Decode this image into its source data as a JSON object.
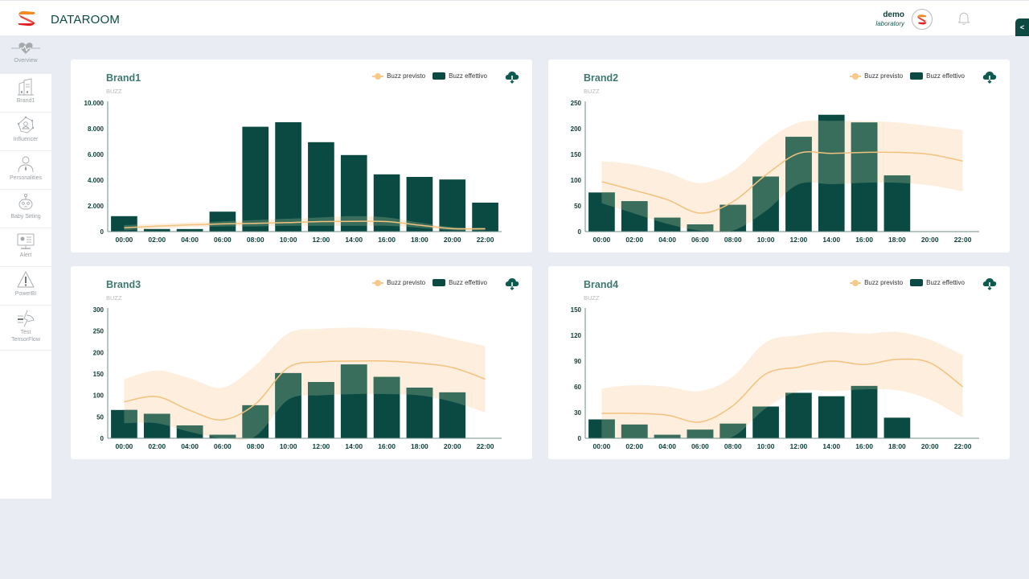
{
  "header": {
    "title": "DATAROOM",
    "user_name": "demo",
    "user_org": "laboratory",
    "collapse_label": "<"
  },
  "sidebar": {
    "items": [
      {
        "label": "Overview",
        "icon": "heart-pulse-icon",
        "active": true
      },
      {
        "label": "Brand1",
        "icon": "buildings-icon"
      },
      {
        "label": "Influencer",
        "icon": "network-user-icon"
      },
      {
        "label": "Personalities",
        "icon": "person-tie-icon"
      },
      {
        "label": "Baby Sitting",
        "icon": "robot-icon"
      },
      {
        "label": "Alert",
        "icon": "monitor-chart-icon"
      },
      {
        "label": "PowerBI",
        "icon": "warning-triangle-icon"
      },
      {
        "label": "Test TensorFlow",
        "icon": "tensorflow-icon"
      }
    ]
  },
  "legend": {
    "predicted": "Buzz previsto",
    "actual": "Buzz effettivo"
  },
  "colors": {
    "bar": "#0a4a42",
    "bar_overlap": "#3a6e5c",
    "line": "#f2c27e",
    "band": "#fdeedd",
    "accent": "#0c4a43"
  },
  "chart_data": [
    {
      "type": "bar",
      "title": "Brand1",
      "ylabel": "BUZZ",
      "categories": [
        "00:00",
        "02:00",
        "04:00",
        "06:00",
        "08:00",
        "10:00",
        "12:00",
        "14:00",
        "16:00",
        "18:00",
        "20:00",
        "22:00"
      ],
      "yticks": [
        "0",
        "2.000",
        "4.000",
        "6.000",
        "8.000",
        "10.000"
      ],
      "ylim": [
        0,
        10000
      ],
      "series": [
        {
          "name": "Buzz effettivo",
          "values": [
            1200,
            200,
            200,
            1550,
            8150,
            8500,
            6950,
            5950,
            4450,
            4250,
            4050,
            2250
          ]
        },
        {
          "name": "Buzz previsto",
          "values": [
            300,
            420,
            520,
            600,
            640,
            700,
            780,
            800,
            780,
            500,
            230,
            220
          ]
        },
        {
          "name": "Buzz previsto band upper",
          "values": [
            500,
            600,
            700,
            800,
            900,
            1000,
            1100,
            1200,
            1100,
            700,
            350,
            300
          ]
        },
        {
          "name": "Buzz previsto band lower",
          "values": [
            100,
            250,
            350,
            400,
            400,
            450,
            450,
            450,
            450,
            300,
            100,
            100
          ]
        }
      ]
    },
    {
      "type": "bar",
      "title": "Brand2",
      "ylabel": "BUZZ",
      "categories": [
        "00:00",
        "02:00",
        "04:00",
        "06:00",
        "08:00",
        "10:00",
        "12:00",
        "14:00",
        "16:00",
        "18:00",
        "20:00",
        "22:00"
      ],
      "yticks": [
        "0",
        "50",
        "100",
        "150",
        "200",
        "250"
      ],
      "ylim": [
        0,
        250
      ],
      "series": [
        {
          "name": "Buzz effettivo",
          "values": [
            76,
            59,
            27,
            14,
            52,
            107,
            184,
            227,
            212,
            109,
            null,
            null
          ]
        },
        {
          "name": "Buzz previsto",
          "values": [
            97,
            80,
            62,
            36,
            58,
            110,
            152,
            152,
            154,
            154,
            150,
            137
          ]
        },
        {
          "name": "Buzz previsto band upper",
          "values": [
            137,
            130,
            115,
            94,
            118,
            175,
            212,
            215,
            215,
            212,
            205,
            197
          ]
        },
        {
          "name": "Buzz previsto band lower",
          "values": [
            55,
            35,
            15,
            2,
            2,
            40,
            92,
            92,
            95,
            95,
            90,
            78
          ]
        }
      ]
    },
    {
      "type": "bar",
      "title": "Brand3",
      "ylabel": "BUZZ",
      "categories": [
        "00:00",
        "02:00",
        "04:00",
        "06:00",
        "08:00",
        "10:00",
        "12:00",
        "14:00",
        "16:00",
        "18:00",
        "20:00",
        "22:00"
      ],
      "yticks": [
        "0",
        "50",
        "100",
        "150",
        "200",
        "250",
        "300"
      ],
      "ylim": [
        0,
        300
      ],
      "series": [
        {
          "name": "Buzz effettivo",
          "values": [
            66,
            57,
            30,
            8,
            77,
            152,
            131,
            172,
            143,
            118,
            107,
            null
          ]
        },
        {
          "name": "Buzz previsto",
          "values": [
            85,
            97,
            65,
            43,
            80,
            165,
            178,
            180,
            180,
            175,
            165,
            138
          ]
        },
        {
          "name": "Buzz previsto band upper",
          "values": [
            138,
            158,
            140,
            118,
            170,
            245,
            255,
            258,
            255,
            248,
            232,
            215
          ]
        },
        {
          "name": "Buzz previsto band lower",
          "values": [
            35,
            35,
            15,
            0,
            5,
            90,
            100,
            103,
            103,
            100,
            85,
            60
          ]
        }
      ]
    },
    {
      "type": "bar",
      "title": "Brand4",
      "ylabel": "BUZZ",
      "categories": [
        "00:00",
        "02:00",
        "04:00",
        "06:00",
        "08:00",
        "10:00",
        "12:00",
        "14:00",
        "16:00",
        "18:00",
        "20:00",
        "22:00"
      ],
      "yticks": [
        "0",
        "30",
        "60",
        "90",
        "120",
        "150"
      ],
      "ylim": [
        0,
        150
      ],
      "series": [
        {
          "name": "Buzz effettivo",
          "values": [
            22,
            16,
            4,
            10,
            17,
            37,
            53,
            49,
            61,
            24,
            null,
            null
          ]
        },
        {
          "name": "Buzz previsto",
          "values": [
            29,
            29,
            27,
            19,
            38,
            75,
            83,
            90,
            86,
            92,
            88,
            60
          ]
        },
        {
          "name": "Buzz previsto band upper",
          "values": [
            58,
            62,
            60,
            55,
            72,
            112,
            120,
            124,
            122,
            124,
            115,
            97
          ]
        },
        {
          "name": "Buzz previsto band lower",
          "values": [
            0,
            0,
            0,
            0,
            2,
            35,
            55,
            55,
            57,
            56,
            45,
            24
          ]
        }
      ]
    }
  ]
}
